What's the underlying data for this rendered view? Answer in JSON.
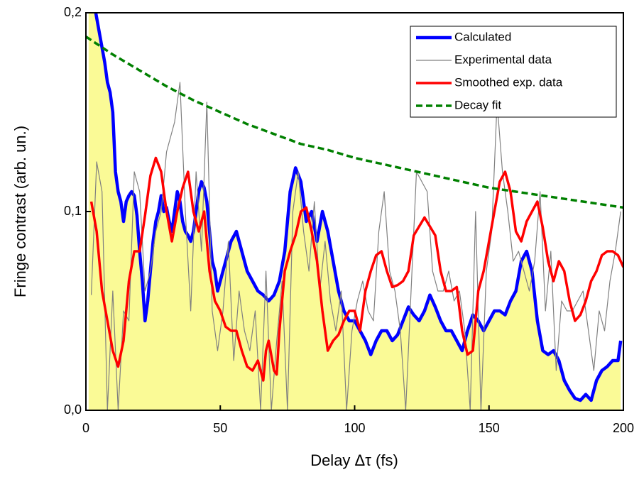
{
  "chart_data": {
    "type": "line",
    "xlabel": "Delay Δτ (fs)",
    "ylabel": "Fringe contrast (arb. un.)",
    "xlim": [
      0,
      200
    ],
    "ylim": [
      0,
      0.2
    ],
    "xticks": [
      0,
      50,
      100,
      150,
      200
    ],
    "yticks": [
      {
        "value": 0,
        "label": "0,0"
      },
      {
        "value": 0.1,
        "label": "0,1"
      },
      {
        "value": 0.2,
        "label": "0,2"
      }
    ],
    "legend": "upper right",
    "series": [
      {
        "name": "Calculated",
        "color": "#0000ff",
        "fill": "#fafa96",
        "x": [
          1,
          3,
          5,
          7,
          8,
          9,
          10,
          11,
          12,
          13,
          14,
          15,
          16,
          17,
          18,
          19,
          20,
          21,
          22,
          23,
          24,
          25,
          26,
          27,
          28,
          29,
          30,
          31,
          32,
          33,
          34,
          35,
          36,
          37,
          38,
          39,
          40,
          41,
          42,
          43,
          44,
          45,
          46,
          47,
          48,
          49,
          50,
          52,
          54,
          56,
          58,
          60,
          62,
          64,
          66,
          68,
          70,
          72,
          74,
          76,
          78,
          80,
          82,
          84,
          86,
          88,
          90,
          92,
          94,
          96,
          98,
          100,
          102,
          104,
          106,
          108,
          110,
          112,
          114,
          116,
          118,
          120,
          122,
          124,
          126,
          128,
          130,
          132,
          134,
          136,
          138,
          140,
          142,
          144,
          146,
          148,
          150,
          152,
          154,
          156,
          158,
          160,
          162,
          164,
          166,
          168,
          170,
          172,
          174,
          176,
          178,
          180,
          182,
          184,
          186,
          188,
          190,
          192,
          194,
          196,
          198,
          199
        ],
        "values": [
          0.21,
          0.205,
          0.19,
          0.175,
          0.165,
          0.16,
          0.15,
          0.12,
          0.11,
          0.105,
          0.095,
          0.105,
          0.108,
          0.11,
          0.108,
          0.098,
          0.08,
          0.065,
          0.045,
          0.055,
          0.07,
          0.085,
          0.095,
          0.1,
          0.108,
          0.1,
          0.102,
          0.095,
          0.09,
          0.1,
          0.11,
          0.105,
          0.095,
          0.09,
          0.088,
          0.085,
          0.09,
          0.1,
          0.11,
          0.115,
          0.112,
          0.105,
          0.09,
          0.075,
          0.07,
          0.06,
          0.065,
          0.075,
          0.085,
          0.09,
          0.08,
          0.07,
          0.065,
          0.06,
          0.058,
          0.055,
          0.058,
          0.065,
          0.08,
          0.11,
          0.122,
          0.115,
          0.095,
          0.1,
          0.085,
          0.1,
          0.09,
          0.075,
          0.06,
          0.05,
          0.045,
          0.045,
          0.04,
          0.035,
          0.028,
          0.035,
          0.04,
          0.04,
          0.035,
          0.038,
          0.045,
          0.052,
          0.048,
          0.045,
          0.05,
          0.058,
          0.052,
          0.045,
          0.04,
          0.04,
          0.035,
          0.03,
          0.04,
          0.048,
          0.045,
          0.04,
          0.045,
          0.05,
          0.05,
          0.048,
          0.055,
          0.06,
          0.075,
          0.08,
          0.07,
          0.045,
          0.03,
          0.028,
          0.03,
          0.025,
          0.015,
          0.01,
          0.006,
          0.005,
          0.008,
          0.005,
          0.015,
          0.02,
          0.022,
          0.025,
          0.025,
          0.035
        ]
      },
      {
        "name": "Experimental data",
        "color": "#808080",
        "x": [
          2,
          4,
          6,
          8,
          10,
          12,
          14,
          16,
          18,
          20,
          22,
          24,
          26,
          28,
          30,
          33,
          35,
          37,
          39,
          41,
          43,
          45,
          47,
          49,
          51,
          53,
          55,
          57,
          59,
          61,
          63,
          65,
          67,
          69,
          71,
          73,
          75,
          77,
          79,
          81,
          83,
          85,
          87,
          89,
          91,
          93,
          95,
          97,
          99,
          101,
          103,
          105,
          107,
          109,
          111,
          113,
          115,
          117,
          119,
          121,
          123,
          125,
          127,
          129,
          131,
          133,
          135,
          137,
          139,
          141,
          143,
          145,
          147,
          149,
          151,
          153,
          155,
          157,
          159,
          161,
          163,
          165,
          167,
          169,
          171,
          173,
          175,
          177,
          179,
          181,
          183,
          185,
          187,
          189,
          191,
          193,
          195,
          197,
          199
        ],
        "values": [
          0.058,
          0.125,
          0.11,
          0.0,
          0.06,
          0.0,
          0.05,
          0.045,
          0.12,
          0.11,
          0.06,
          0.07,
          0.09,
          0.1,
          0.13,
          0.145,
          0.165,
          0.1,
          0.05,
          0.12,
          0.08,
          0.155,
          0.05,
          0.03,
          0.05,
          0.085,
          0.025,
          0.06,
          0.04,
          0.03,
          0.05,
          0.0,
          0.07,
          0.0,
          0.035,
          0.065,
          0.0,
          0.1,
          0.12,
          0.09,
          0.07,
          0.105,
          0.06,
          0.085,
          0.055,
          0.04,
          0.06,
          0.0,
          0.04,
          0.055,
          0.065,
          0.05,
          0.045,
          0.09,
          0.11,
          0.07,
          0.06,
          0.04,
          0.0,
          0.06,
          0.12,
          0.115,
          0.11,
          0.07,
          0.06,
          0.06,
          0.07,
          0.055,
          0.06,
          0.04,
          0.0,
          0.1,
          0.0,
          0.07,
          0.09,
          0.155,
          0.12,
          0.1,
          0.075,
          0.08,
          0.07,
          0.06,
          0.075,
          0.11,
          0.05,
          0.08,
          0.02,
          0.055,
          0.05,
          0.05,
          0.055,
          0.06,
          0.04,
          0.02,
          0.05,
          0.04,
          0.065,
          0.08,
          0.1
        ]
      },
      {
        "name": "Smoothed exp. data",
        "color": "#ff0000",
        "x": [
          2,
          4,
          6,
          8,
          10,
          12,
          14,
          16,
          18,
          20,
          22,
          24,
          26,
          28,
          30,
          32,
          34,
          36,
          38,
          40,
          42,
          44,
          46,
          48,
          50,
          52,
          54,
          56,
          58,
          60,
          62,
          64,
          66,
          67,
          68,
          70,
          71,
          72,
          74,
          76,
          78,
          80,
          82,
          84,
          86,
          88,
          90,
          92,
          94,
          96,
          98,
          100,
          102,
          104,
          106,
          108,
          110,
          112,
          114,
          116,
          118,
          120,
          122,
          126,
          130,
          132,
          134,
          136,
          138,
          140,
          142,
          144,
          146,
          148,
          150,
          152,
          154,
          156,
          158,
          160,
          162,
          164,
          166,
          168,
          170,
          172,
          174,
          176,
          178,
          180,
          182,
          184,
          186,
          188,
          190,
          192,
          194,
          196,
          198,
          200
        ],
        "values": [
          0.105,
          0.09,
          0.06,
          0.045,
          0.03,
          0.022,
          0.035,
          0.065,
          0.08,
          0.08,
          0.098,
          0.118,
          0.127,
          0.12,
          0.1,
          0.085,
          0.1,
          0.112,
          0.12,
          0.1,
          0.09,
          0.1,
          0.07,
          0.055,
          0.05,
          0.042,
          0.04,
          0.04,
          0.03,
          0.022,
          0.02,
          0.025,
          0.015,
          0.03,
          0.035,
          0.02,
          0.018,
          0.04,
          0.07,
          0.08,
          0.088,
          0.1,
          0.102,
          0.09,
          0.075,
          0.05,
          0.03,
          0.035,
          0.038,
          0.045,
          0.05,
          0.05,
          0.04,
          0.06,
          0.07,
          0.078,
          0.08,
          0.07,
          0.062,
          0.063,
          0.065,
          0.07,
          0.088,
          0.097,
          0.088,
          0.07,
          0.06,
          0.06,
          0.062,
          0.04,
          0.028,
          0.03,
          0.06,
          0.07,
          0.085,
          0.1,
          0.115,
          0.12,
          0.11,
          0.09,
          0.085,
          0.095,
          0.1,
          0.105,
          0.092,
          0.075,
          0.065,
          0.075,
          0.07,
          0.055,
          0.045,
          0.048,
          0.055,
          0.065,
          0.07,
          0.078,
          0.08,
          0.08,
          0.078,
          0.072
        ]
      },
      {
        "name": "Decay fit",
        "color": "#008000",
        "style": "dashed",
        "x": [
          0,
          10,
          20,
          30,
          40,
          50,
          60,
          70,
          80,
          90,
          100,
          110,
          120,
          130,
          140,
          150,
          160,
          170,
          180,
          190,
          200
        ],
        "values": [
          0.188,
          0.179,
          0.171,
          0.163,
          0.156,
          0.15,
          0.144,
          0.139,
          0.134,
          0.131,
          0.127,
          0.124,
          0.121,
          0.118,
          0.115,
          0.112,
          0.11,
          0.108,
          0.106,
          0.104,
          0.102
        ]
      }
    ]
  }
}
